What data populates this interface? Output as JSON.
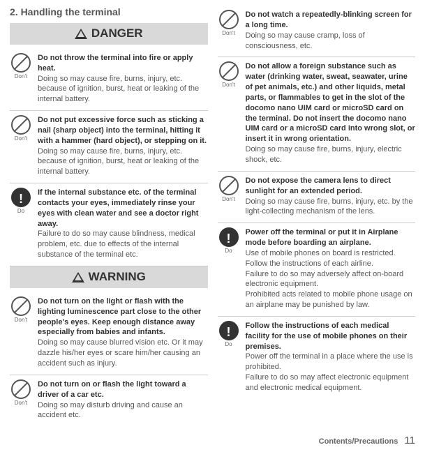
{
  "heading": "2.  Handling the terminal",
  "labels": {
    "danger": "DANGER",
    "warning": "WARNING",
    "dont": "Don't",
    "do": "Do"
  },
  "left": [
    {
      "kind": "dont",
      "bold": "Do not throw the terminal into fire or apply heat.",
      "plain": "Doing so may cause fire, burns, injury, etc. because of ignition, burst, heat or leaking of the internal battery."
    },
    {
      "kind": "dont",
      "bold": "Do not put excessive force such as sticking a nail (sharp object) into the terminal, hitting it with a hammer (hard object), or stepping on it.",
      "plain": "Doing so may cause fire, burns, injury, etc. because of ignition, burst, heat or leaking of the internal battery."
    },
    {
      "kind": "do",
      "bold": "If the internal substance etc. of the terminal contacts your eyes, immediately rinse your eyes with clean water and see a doctor right away.",
      "plain": "Failure to do so may cause blindness, medical problem, etc. due to effects of the internal substance of the terminal etc."
    }
  ],
  "leftWarn": [
    {
      "kind": "dont",
      "bold": "Do not turn on the light or flash with the lighting luminescence part close to the other people's eyes. Keep enough distance away especially from babies and infants.",
      "plain": "Doing so may cause blurred vision etc. Or it may dazzle his/her eyes or scare him/her causing an accident such as injury."
    },
    {
      "kind": "dont",
      "bold": "Do not turn on or flash the light toward a driver of a car etc.",
      "plain": "Doing so may disturb driving and cause an accident etc."
    }
  ],
  "right": [
    {
      "kind": "dont",
      "bold": "Do not watch a repeatedly-blinking screen for a long time.",
      "plain": "Doing so may cause cramp, loss of consciousness, etc."
    },
    {
      "kind": "dont",
      "bold": "Do not allow a foreign substance such as water (drinking water, sweat, seawater, urine of pet animals, etc.) and other liquids, metal parts, or flammables to get in the slot of the docomo nano UIM card or microSD card on the terminal. Do not insert the docomo nano UIM card or a microSD card into wrong slot, or insert it in wrong orientation.",
      "plain": "Doing so may cause fire, burns, injury, electric shock, etc."
    },
    {
      "kind": "dont",
      "bold": "Do not expose the camera lens to direct sunlight for an extended period.",
      "plain": "Doing so may cause fire, burns, injury, etc. by the light-collecting mechanism of the lens."
    },
    {
      "kind": "do",
      "bold": "Power off the terminal or put it in Airplane mode before boarding an airplane.",
      "plain": "Use of mobile phones on board is restricted. Follow the instructions of each airline.\nFailure to do so may adversely affect on-board electronic equipment.\nProhibited acts related to mobile phone usage on an airplane may be punished by law."
    },
    {
      "kind": "do",
      "bold": "Follow the instructions of each medical facility for the use of mobile phones on their premises.",
      "plain": "Power off the terminal in a place where the use is prohibited.\nFailure to do so may affect electronic equipment and electronic medical equipment."
    }
  ],
  "footer": {
    "section": "Contents/Precautions",
    "page": "11"
  }
}
